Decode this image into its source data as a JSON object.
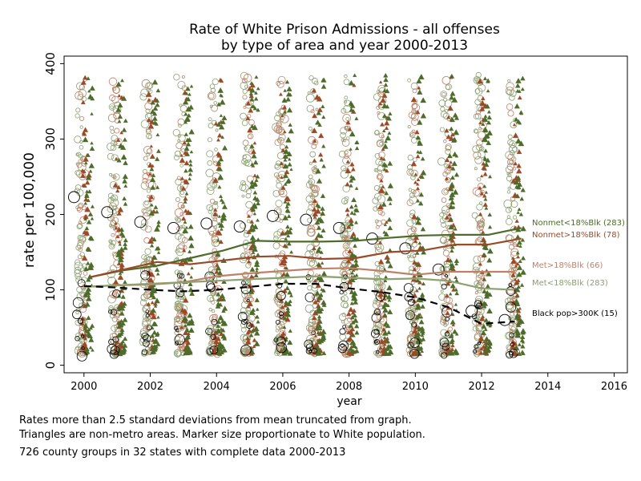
{
  "chart_data": {
    "type": "scatter",
    "title": "Rate of White Prison Admissions - all offenses",
    "subtitle": "by type of area and year 2000-2013",
    "xlabel": "year",
    "ylabel": "rate per 100,000",
    "xlim": [
      1999.4,
      2016.4
    ],
    "ylim": [
      -10,
      410
    ],
    "x_ticks": [
      "2000",
      "2002",
      "2004",
      "2006",
      "2008",
      "2010",
      "2012",
      "2014",
      "2016"
    ],
    "y_ticks": [
      "0",
      "100",
      "200",
      "300",
      "400"
    ],
    "legend_position": "right",
    "colors": {
      "nonmet_lt18": "#4d6b2a",
      "nonmet_gt18": "#9b4a28",
      "met_gt18": "#c08068",
      "met_lt18": "#8ca070",
      "black_pop": "#000000"
    },
    "series": [
      {
        "name": "Nonmet<18%Blk (283)",
        "color": "#4d6b2a",
        "marker": "triangle",
        "x": [
          2000.2,
          2001.2,
          2002.2,
          2003.2,
          2004.2,
          2005.2,
          2006.2,
          2007.2,
          2008.2,
          2009.2,
          2010.2,
          2011.2,
          2012.2,
          2013.2
        ],
        "y": [
          117,
          126,
          132,
          142,
          152,
          165,
          164,
          164,
          165,
          169,
          172,
          173,
          173,
          182
        ]
      },
      {
        "name": "Nonmet>18%Blk (78)",
        "color": "#9b4a28",
        "marker": "triangle",
        "x": [
          2000.2,
          2001.2,
          2002.2,
          2003.2,
          2004.2,
          2005.2,
          2006.2,
          2007.2,
          2008.2,
          2009.2,
          2010.2,
          2011.2,
          2012.2,
          2013.2
        ],
        "y": [
          117,
          127,
          137,
          134,
          139,
          144,
          145,
          141,
          142,
          150,
          152,
          160,
          160,
          168
        ]
      },
      {
        "name": "Met>18%Blk (66)",
        "color": "#c08068",
        "marker": "circle",
        "x": [
          2000.0,
          2001.0,
          2002.0,
          2003.0,
          2004.0,
          2005.0,
          2006.0,
          2007.0,
          2008.0,
          2009.0,
          2010.0,
          2011.0,
          2012.0,
          2013.0
        ],
        "y": [
          104,
          106,
          107,
          110,
          118,
          122,
          125,
          128,
          129,
          125,
          120,
          124,
          124,
          124
        ]
      },
      {
        "name": "Met<18%Blk (283)",
        "color": "#8ca070",
        "marker": "circle",
        "x": [
          2000.0,
          2001.0,
          2002.0,
          2003.0,
          2004.0,
          2005.0,
          2006.0,
          2007.0,
          2008.0,
          2009.0,
          2010.0,
          2011.0,
          2012.0,
          2013.0
        ],
        "y": [
          104,
          106,
          108,
          110,
          112,
          114,
          116,
          118,
          116,
          114,
          115,
          112,
          102,
          100
        ]
      },
      {
        "name": "Black pop>300K (15)",
        "color": "#000000",
        "marker": "circle",
        "dashed": true,
        "x": [
          2000.0,
          2001.0,
          2002.0,
          2003.0,
          2004.0,
          2005.0,
          2006.0,
          2007.0,
          2008.0,
          2009.0,
          2010.0,
          2011.0,
          2012.0,
          2013.0
        ],
        "y": [
          105,
          103,
          100,
          98,
          100,
          104,
          108,
          108,
          102,
          97,
          90,
          77,
          55,
          58
        ]
      }
    ],
    "annotations": {
      "big_circles": {
        "x": [
          1999.7,
          2000.7,
          2001.7,
          2002.7,
          2003.7,
          2004.7,
          2005.7,
          2006.7,
          2007.7,
          2008.7,
          2009.7,
          2010.7,
          2011.7,
          2012.7
        ],
        "y": [
          223,
          203,
          190,
          182,
          188,
          184,
          198,
          193,
          182,
          168,
          155,
          127,
          72,
          60
        ]
      }
    }
  },
  "notes": {
    "line1": "Rates more than 2.5 standard deviations from mean truncated from graph.",
    "line2": "Triangles are non-metro areas. Marker size proportionate to White population.",
    "line3": "726 county groups in 32 states  with complete data 2000-2013"
  }
}
